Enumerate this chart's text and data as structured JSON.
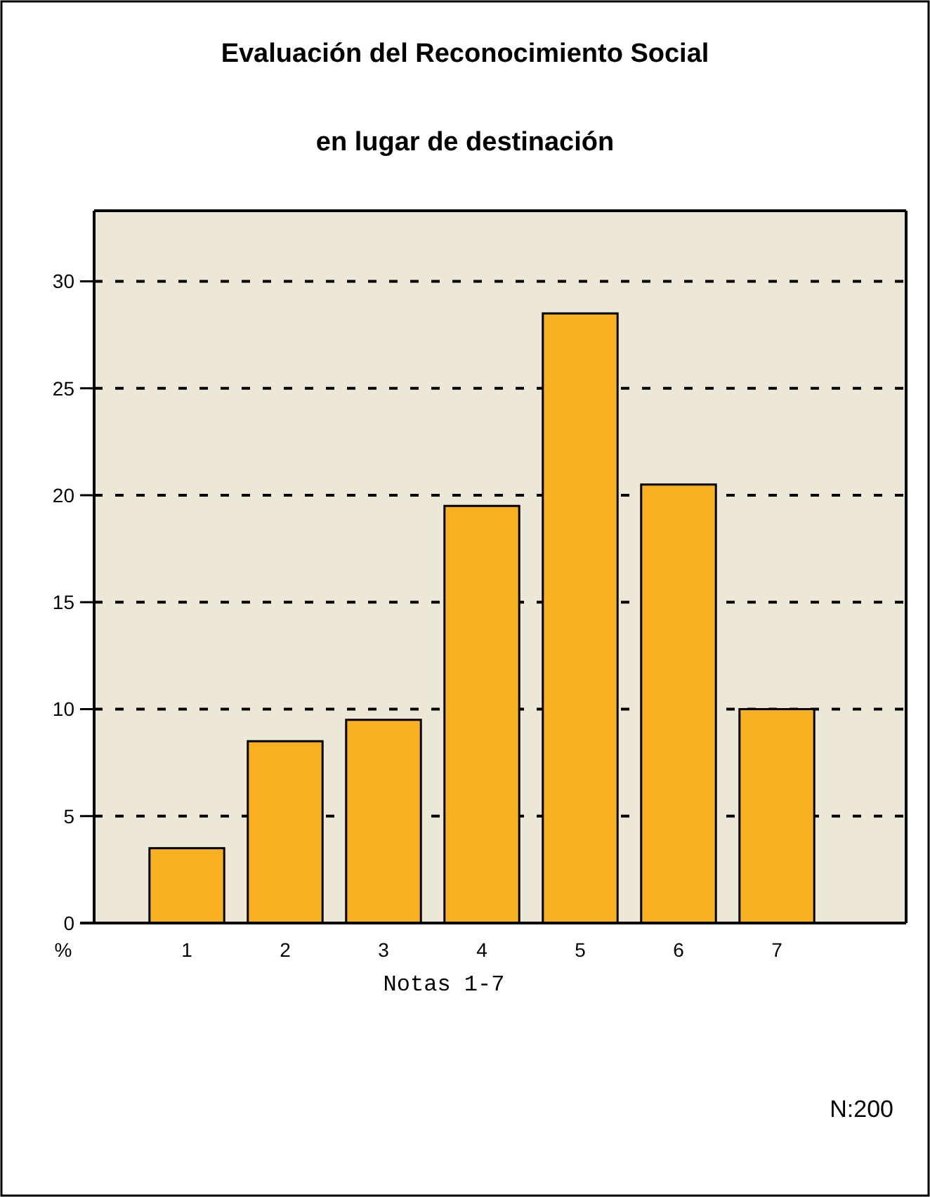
{
  "chart_data": {
    "type": "bar",
    "title": "Evaluación del Reconocimiento Social",
    "subtitle": "en lugar de destinación",
    "xlabel": "Notas 1-7",
    "ylabel": "%",
    "annotations": [
      "N:200"
    ],
    "categories": [
      "1",
      "2",
      "3",
      "4",
      "5",
      "6",
      "7"
    ],
    "values": [
      3.5,
      8.5,
      9.5,
      19.5,
      28.5,
      20.5,
      10
    ],
    "color": "#f8b020",
    "ylim": [
      0,
      33.3
    ],
    "yticks": [
      0,
      5,
      10,
      15,
      20,
      25,
      30
    ],
    "grid": "y"
  }
}
